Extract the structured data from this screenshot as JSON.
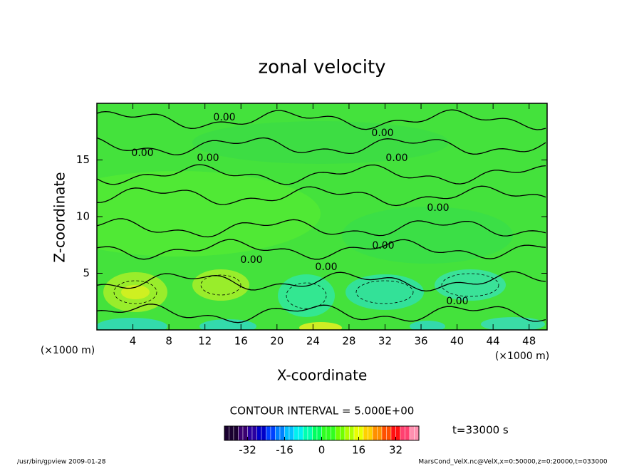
{
  "chart_data": {
    "type": "contour",
    "title": "zonal velocity",
    "xlabel": "X-coordinate",
    "ylabel": "Z-coordinate",
    "xunit": "(×1000 m)",
    "yunit": "(×1000 m)",
    "xlim": [
      0,
      50
    ],
    "ylim": [
      0,
      20
    ],
    "xticks": [
      4,
      8,
      12,
      16,
      20,
      24,
      28,
      32,
      36,
      40,
      44,
      48
    ],
    "yticks": [
      5,
      10,
      15
    ],
    "contour_labels": [
      "0.00",
      "0.00",
      "0.00",
      "0.00",
      "0.00",
      "0.00",
      "0.00",
      "0.00",
      "0.00",
      "0.00"
    ],
    "contour_interval_label": "CONTOUR INTERVAL = 5.000E+00",
    "time_label": "t=33000 s",
    "colorbar": {
      "lim": [
        -42,
        42
      ],
      "ticks": [
        -32,
        -16,
        0,
        16,
        32
      ],
      "colors": [
        "#1a0030",
        "#3a0070",
        "#2a00a0",
        "#0000c8",
        "#0040ff",
        "#0080ff",
        "#00c0ff",
        "#00f0f0",
        "#00ffb0",
        "#00ff60",
        "#30ff20",
        "#70ff00",
        "#b0ff00",
        "#e8ff00",
        "#ffd000",
        "#ff9000",
        "#ff5000",
        "#ff1010",
        "#ff4070",
        "#ff90b0"
      ]
    },
    "footer_left": "/usr/bin/gpview   2009-01-28",
    "footer_right": "MarsCond_VelX.nc@VelX,x=0:50000,z=0:20000,t=033000"
  }
}
